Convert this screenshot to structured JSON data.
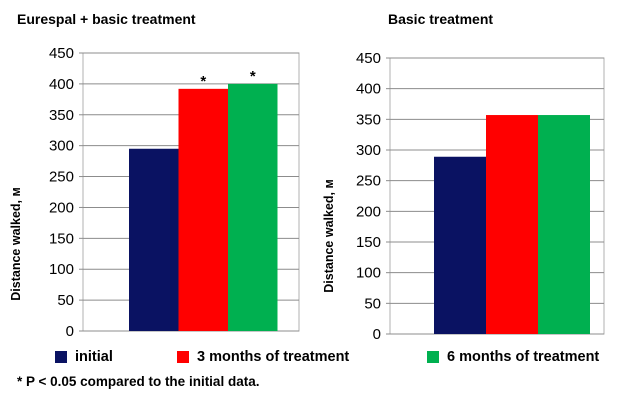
{
  "chart_data": [
    {
      "type": "bar",
      "title": "Eurespal + basic treatment",
      "ylabel": "Distance walked, м",
      "ylim": [
        0,
        450
      ],
      "yticks": [
        0,
        50,
        100,
        150,
        200,
        250,
        300,
        350,
        400,
        450
      ],
      "grid": true,
      "series": [
        {
          "name": "initial",
          "values": [
            295
          ]
        },
        {
          "name": "3 months of treatment",
          "values": [
            392
          ]
        },
        {
          "name": "6 months of treatment",
          "values": [
            400
          ]
        }
      ],
      "annotations": [
        "",
        "*",
        "*"
      ]
    },
    {
      "type": "bar",
      "title": "Basic treatment",
      "ylabel": "Distance walked, м",
      "ylim": [
        0,
        450
      ],
      "yticks": [
        0,
        50,
        100,
        150,
        200,
        250,
        300,
        350,
        400,
        450
      ],
      "grid": true,
      "series": [
        {
          "name": "initial",
          "values": [
            289
          ]
        },
        {
          "name": "3 months of treatment",
          "values": [
            357
          ]
        },
        {
          "name": "6 months of treatment",
          "values": [
            357
          ]
        }
      ],
      "annotations": [
        "",
        "",
        ""
      ]
    }
  ],
  "legend": {
    "placement": "bottom",
    "items": [
      {
        "label": "initial",
        "color": "#0a1262"
      },
      {
        "label": "3 months of treatment",
        "color": "#ff0000"
      },
      {
        "label": "6 months of treatment",
        "color": "#00b050"
      }
    ]
  },
  "footnote": "* P < 0.05 compared to the initial data."
}
